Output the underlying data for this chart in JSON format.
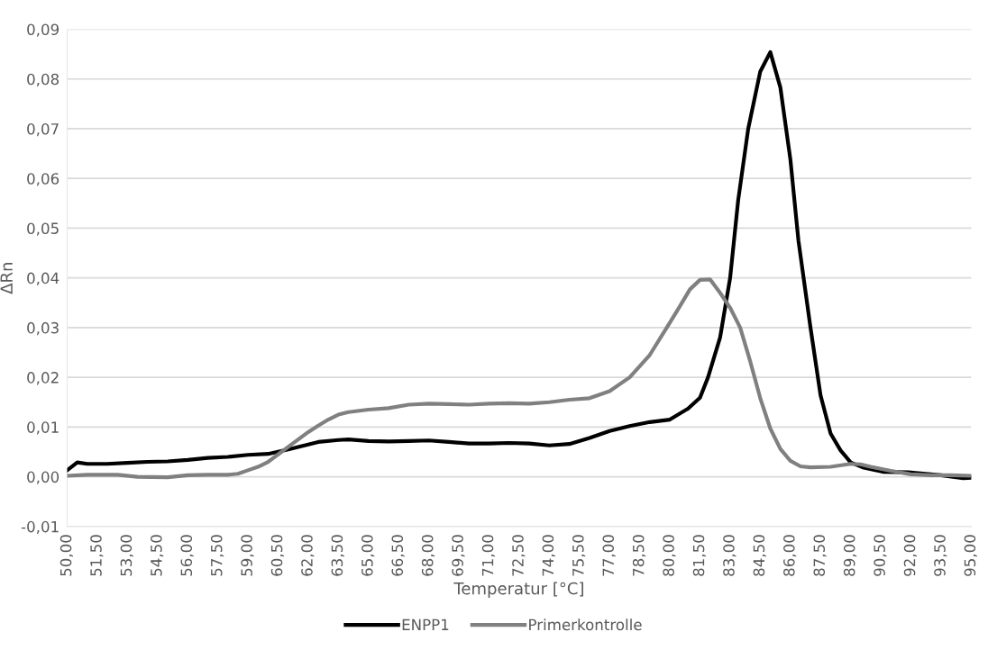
{
  "chart_data": {
    "type": "line",
    "xlabel": "Temperatur [°C]",
    "ylabel": "ΔRn",
    "xlim": [
      50,
      95
    ],
    "xticks": [
      {
        "value": 50,
        "label": "50,00"
      },
      {
        "value": 51.5,
        "label": "51,50"
      },
      {
        "value": 53,
        "label": "53,00"
      },
      {
        "value": 54.5,
        "label": "54,50"
      },
      {
        "value": 56,
        "label": "56,00"
      },
      {
        "value": 57.5,
        "label": "57,50"
      },
      {
        "value": 59,
        "label": "59,00"
      },
      {
        "value": 60.5,
        "label": "60,50"
      },
      {
        "value": 62,
        "label": "62,00"
      },
      {
        "value": 63.5,
        "label": "63,50"
      },
      {
        "value": 65,
        "label": "65,00"
      },
      {
        "value": 66.5,
        "label": "66,50"
      },
      {
        "value": 68,
        "label": "68,00"
      },
      {
        "value": 69.5,
        "label": "69,50"
      },
      {
        "value": 71,
        "label": "71,00"
      },
      {
        "value": 72.5,
        "label": "72,50"
      },
      {
        "value": 74,
        "label": "74,00"
      },
      {
        "value": 75.5,
        "label": "75,50"
      },
      {
        "value": 77,
        "label": "77,00"
      },
      {
        "value": 78.5,
        "label": "78,50"
      },
      {
        "value": 80,
        "label": "80,00"
      },
      {
        "value": 81.5,
        "label": "81,50"
      },
      {
        "value": 83,
        "label": "83,00"
      },
      {
        "value": 84.5,
        "label": "84,50"
      },
      {
        "value": 86,
        "label": "86,00"
      },
      {
        "value": 87.5,
        "label": "87,50"
      },
      {
        "value": 89,
        "label": "89,00"
      },
      {
        "value": 90.5,
        "label": "90,50"
      },
      {
        "value": 92,
        "label": "92,00"
      },
      {
        "value": 93.5,
        "label": "93,50"
      },
      {
        "value": 95,
        "label": "95,00"
      }
    ],
    "ylim": [
      -0.01,
      0.09
    ],
    "yticks": [
      {
        "value": -0.01,
        "label": "-0,01"
      },
      {
        "value": 0,
        "label": "0,00"
      },
      {
        "value": 0.01,
        "label": "0,01"
      },
      {
        "value": 0.02,
        "label": "0,02"
      },
      {
        "value": 0.03,
        "label": "0,03"
      },
      {
        "value": 0.04,
        "label": "0,04"
      },
      {
        "value": 0.05,
        "label": "0,05"
      },
      {
        "value": 0.06,
        "label": "0,06"
      },
      {
        "value": 0.07,
        "label": "0,07"
      },
      {
        "value": 0.08,
        "label": "0,08"
      },
      {
        "value": 0.09,
        "label": "0,09"
      }
    ],
    "grid": "y",
    "legend": "bottom",
    "line_style": "solid",
    "marker": "none",
    "series": [
      {
        "name": "ENPP1",
        "color": "#000000",
        "x": [
          50,
          50.5,
          51,
          52,
          53,
          54,
          55,
          56,
          57,
          58,
          59,
          60,
          61,
          62,
          62.5,
          63.5,
          64,
          65,
          66,
          67,
          68,
          69,
          70,
          71,
          72,
          73,
          74,
          75,
          76,
          77,
          78,
          79,
          80,
          80.9,
          81.5,
          81.9,
          82.5,
          83,
          83.4,
          83.9,
          84.5,
          85,
          85.5,
          86,
          86.4,
          87,
          87.5,
          88,
          88.5,
          89,
          89.6,
          90.6,
          91.9,
          93.5,
          94.6,
          95
        ],
        "values": [
          0.0013,
          0.0029,
          0.0026,
          0.0026,
          0.0028,
          0.003,
          0.0031,
          0.0034,
          0.0038,
          0.004,
          0.0044,
          0.0046,
          0.0055,
          0.0065,
          0.007,
          0.0074,
          0.0075,
          0.0072,
          0.0071,
          0.0072,
          0.0073,
          0.007,
          0.0067,
          0.0067,
          0.0068,
          0.0067,
          0.0063,
          0.0066,
          0.0078,
          0.0092,
          0.0102,
          0.011,
          0.0115,
          0.0137,
          0.0159,
          0.02,
          0.028,
          0.04,
          0.0556,
          0.07,
          0.0815,
          0.0854,
          0.0783,
          0.0638,
          0.0475,
          0.03,
          0.0164,
          0.0087,
          0.0053,
          0.0029,
          0.0019,
          0.001,
          0.0009,
          0.0003,
          -0.0003,
          -0.0002
        ]
      },
      {
        "name": "Primerkontrolle",
        "color": "#808080",
        "x": [
          50,
          51,
          52.5,
          53.5,
          55,
          56,
          57,
          58,
          58.5,
          59,
          59.5,
          60,
          60.5,
          61,
          61.5,
          62,
          62.5,
          63,
          63.5,
          64,
          65,
          66,
          67,
          68,
          69,
          70,
          71,
          72,
          73,
          74,
          75,
          76,
          77,
          78,
          79,
          80,
          80.5,
          81,
          81.5,
          82,
          82.5,
          83,
          83.5,
          84,
          84.5,
          85,
          85.5,
          86,
          86.5,
          87,
          88,
          89,
          89.5,
          90,
          91,
          92,
          93,
          94,
          95
        ],
        "values": [
          0.0002,
          0.0004,
          0.0004,
          0.0,
          -0.0001,
          0.0003,
          0.0004,
          0.0004,
          0.0006,
          0.0013,
          0.002,
          0.003,
          0.0045,
          0.006,
          0.0075,
          0.009,
          0.0103,
          0.0115,
          0.0125,
          0.013,
          0.0135,
          0.0138,
          0.0145,
          0.0147,
          0.0146,
          0.0145,
          0.0147,
          0.0148,
          0.0147,
          0.015,
          0.0155,
          0.0158,
          0.0172,
          0.02,
          0.0245,
          0.031,
          0.0343,
          0.0377,
          0.0396,
          0.0397,
          0.037,
          0.034,
          0.03,
          0.0232,
          0.0158,
          0.0097,
          0.0056,
          0.0032,
          0.0021,
          0.0019,
          0.002,
          0.0026,
          0.0025,
          0.002,
          0.0012,
          0.0005,
          0.0003,
          0.0003,
          0.0002
        ]
      }
    ]
  }
}
